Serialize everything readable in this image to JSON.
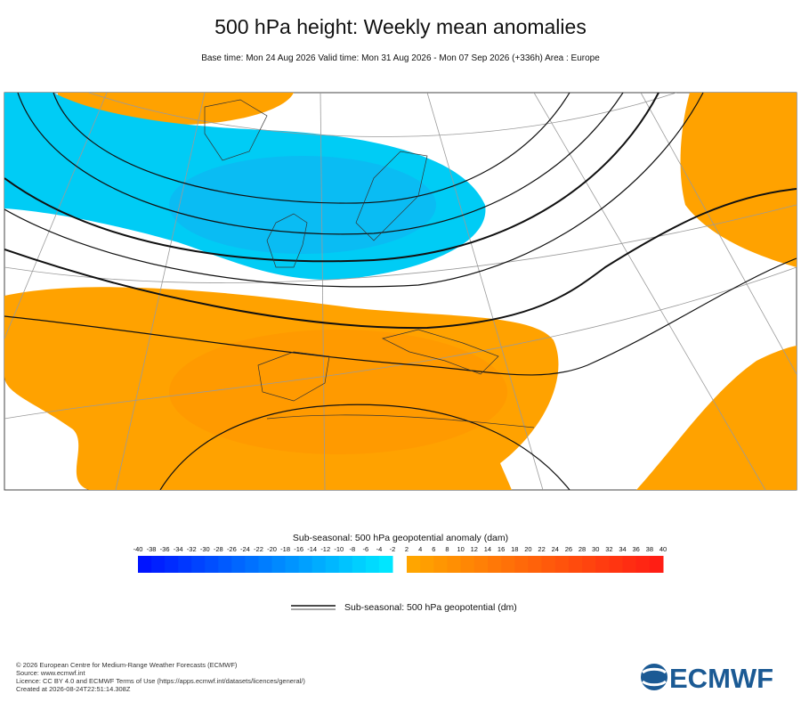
{
  "header": {
    "title": "500 hPa height: Weekly mean anomalies",
    "subtitle": "Base time: Mon 24 Aug 2026 Valid time: Mon 31 Aug 2026 - Mon 07 Sep 2026 (+336h) Area : Europe"
  },
  "colorbar": {
    "title": "Sub-seasonal: 500 hPa geopotential anomaly (dam)",
    "negative_ticks": [
      -40,
      -38,
      -36,
      -34,
      -32,
      -30,
      -28,
      -26,
      -24,
      -22,
      -20,
      -18,
      -16,
      -14,
      -12,
      -10,
      -8,
      -6,
      -4,
      -2
    ],
    "positive_ticks": [
      2,
      4,
      6,
      8,
      10,
      12,
      14,
      16,
      18,
      20,
      22,
      24,
      26,
      28,
      30,
      32,
      34,
      36,
      38,
      40
    ]
  },
  "legend": {
    "label": "Sub-seasonal: 500 hPa geopotential (dm)"
  },
  "footer": {
    "lines": [
      "© 2026 European Centre for Medium-Range Weather Forecasts (ECMWF)",
      "Source: www.ecmwf.int",
      "Licence: CC BY 4.0 and ECMWF Terms of Use (https://apps.ecmwf.int/datasets/licences/general/)",
      "Created at 2026-08-24T22:51:14.308Z"
    ]
  },
  "logo": {
    "text": "ECMWF"
  }
}
